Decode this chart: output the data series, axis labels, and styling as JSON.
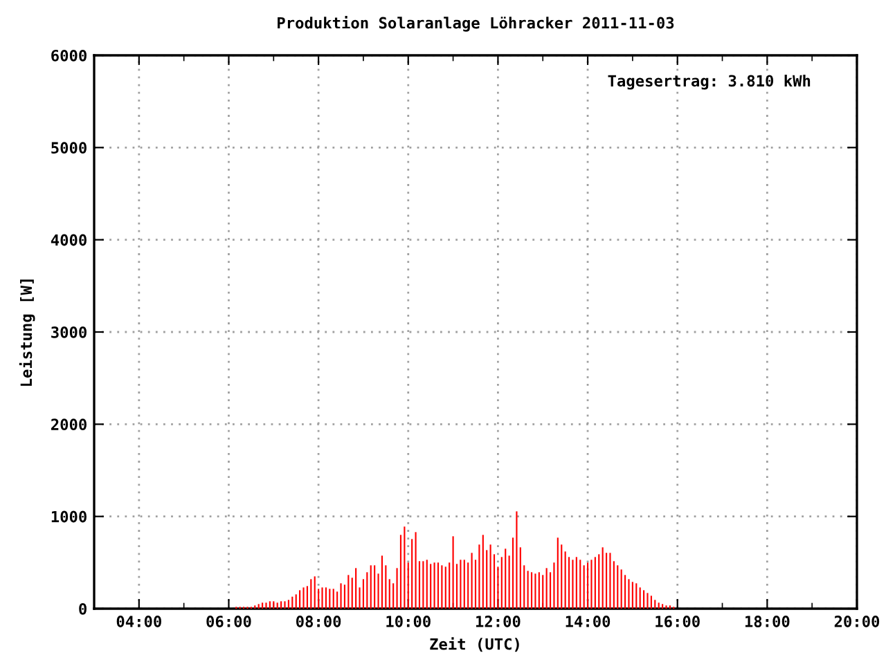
{
  "chart_data": {
    "type": "bar",
    "title": "Produktion Solaranlage Löhracker 2011-11-03",
    "xlabel": "Zeit (UTC)",
    "ylabel": "Leistung [W]",
    "annotations": [
      "Tagesertrag: 3.810 kWh"
    ],
    "x": [
      "2011-11-03T06:10",
      "2011-11-03T06:15",
      "2011-11-03T06:20",
      "2011-11-03T06:25",
      "2011-11-03T06:30",
      "2011-11-03T06:35",
      "2011-11-03T06:40",
      "2011-11-03T06:45",
      "2011-11-03T06:50",
      "2011-11-03T06:55",
      "2011-11-03T07:00",
      "2011-11-03T07:05",
      "2011-11-03T07:10",
      "2011-11-03T07:15",
      "2011-11-03T07:20",
      "2011-11-03T07:25",
      "2011-11-03T07:30",
      "2011-11-03T07:35",
      "2011-11-03T07:40",
      "2011-11-03T07:45",
      "2011-11-03T07:50",
      "2011-11-03T07:55",
      "2011-11-03T08:00",
      "2011-11-03T08:05",
      "2011-11-03T08:10",
      "2011-11-03T08:15",
      "2011-11-03T08:20",
      "2011-11-03T08:25",
      "2011-11-03T08:30",
      "2011-11-03T08:35",
      "2011-11-03T08:40",
      "2011-11-03T08:45",
      "2011-11-03T08:50",
      "2011-11-03T08:55",
      "2011-11-03T09:00",
      "2011-11-03T09:05",
      "2011-11-03T09:10",
      "2011-11-03T09:15",
      "2011-11-03T09:20",
      "2011-11-03T09:25",
      "2011-11-03T09:30",
      "2011-11-03T09:35",
      "2011-11-03T09:40",
      "2011-11-03T09:45",
      "2011-11-03T09:50",
      "2011-11-03T09:55",
      "2011-11-03T10:00",
      "2011-11-03T10:05",
      "2011-11-03T10:10",
      "2011-11-03T10:15",
      "2011-11-03T10:20",
      "2011-11-03T10:25",
      "2011-11-03T10:30",
      "2011-11-03T10:35",
      "2011-11-03T10:40",
      "2011-11-03T10:45",
      "2011-11-03T10:50",
      "2011-11-03T10:55",
      "2011-11-03T11:00",
      "2011-11-03T11:05",
      "2011-11-03T11:10",
      "2011-11-03T11:15",
      "2011-11-03T11:20",
      "2011-11-03T11:25",
      "2011-11-03T11:30",
      "2011-11-03T11:35",
      "2011-11-03T11:40",
      "2011-11-03T11:45",
      "2011-11-03T11:50",
      "2011-11-03T11:55",
      "2011-11-03T12:00",
      "2011-11-03T12:05",
      "2011-11-03T12:10",
      "2011-11-03T12:15",
      "2011-11-03T12:20",
      "2011-11-03T12:25",
      "2011-11-03T12:30",
      "2011-11-03T12:35",
      "2011-11-03T12:40",
      "2011-11-03T12:45",
      "2011-11-03T12:50",
      "2011-11-03T12:55",
      "2011-11-03T13:00",
      "2011-11-03T13:05",
      "2011-11-03T13:10",
      "2011-11-03T13:15",
      "2011-11-03T13:20",
      "2011-11-03T13:25",
      "2011-11-03T13:30",
      "2011-11-03T13:35",
      "2011-11-03T13:40",
      "2011-11-03T13:45",
      "2011-11-03T13:50",
      "2011-11-03T13:55",
      "2011-11-03T14:00",
      "2011-11-03T14:05",
      "2011-11-03T14:10",
      "2011-11-03T14:15",
      "2011-11-03T14:20",
      "2011-11-03T14:25",
      "2011-11-03T14:30",
      "2011-11-03T14:35",
      "2011-11-03T14:40",
      "2011-11-03T14:45",
      "2011-11-03T14:50",
      "2011-11-03T14:55",
      "2011-11-03T15:00",
      "2011-11-03T15:05",
      "2011-11-03T15:10",
      "2011-11-03T15:15",
      "2011-11-03T15:20",
      "2011-11-03T15:25",
      "2011-11-03T15:30",
      "2011-11-03T15:35",
      "2011-11-03T15:40",
      "2011-11-03T15:45",
      "2011-11-03T15:50",
      "2011-11-03T15:55"
    ],
    "series": [
      {
        "color": "#ff0000",
        "values": [
          20,
          20,
          20,
          20,
          20,
          35,
          50,
          65,
          65,
          80,
          80,
          65,
          80,
          80,
          95,
          130,
          155,
          200,
          230,
          245,
          320,
          350,
          215,
          230,
          230,
          215,
          215,
          185,
          275,
          260,
          365,
          335,
          440,
          230,
          320,
          395,
          470,
          470,
          380,
          575,
          470,
          320,
          275,
          440,
          800,
          890,
          500,
          755,
          830,
          515,
          515,
          530,
          485,
          500,
          500,
          470,
          455,
          500,
          785,
          485,
          530,
          530,
          500,
          605,
          530,
          695,
          800,
          635,
          695,
          590,
          455,
          560,
          650,
          575,
          770,
          1055,
          665,
          470,
          410,
          395,
          380,
          395,
          365,
          440,
          395,
          500,
          770,
          695,
          620,
          560,
          530,
          560,
          530,
          470,
          500,
          530,
          560,
          590,
          665,
          605,
          605,
          515,
          470,
          425,
          365,
          320,
          290,
          275,
          230,
          200,
          170,
          140,
          95,
          65,
          50,
          35,
          35,
          20
        ]
      }
    ],
    "xlim": [
      "2011-11-03T03:00",
      "2011-11-03T20:00"
    ],
    "xticks": [
      {
        "value": "2011-11-03T04:00",
        "label": "04:00"
      },
      {
        "value": "2011-11-03T05:00",
        "label": null
      },
      {
        "value": "2011-11-03T06:00",
        "label": "06:00"
      },
      {
        "value": "2011-11-03T07:00",
        "label": null
      },
      {
        "value": "2011-11-03T08:00",
        "label": "08:00"
      },
      {
        "value": "2011-11-03T09:00",
        "label": null
      },
      {
        "value": "2011-11-03T10:00",
        "label": "10:00"
      },
      {
        "value": "2011-11-03T11:00",
        "label": null
      },
      {
        "value": "2011-11-03T12:00",
        "label": "12:00"
      },
      {
        "value": "2011-11-03T13:00",
        "label": null
      },
      {
        "value": "2011-11-03T14:00",
        "label": "14:00"
      },
      {
        "value": "2011-11-03T15:00",
        "label": null
      },
      {
        "value": "2011-11-03T16:00",
        "label": "16:00"
      },
      {
        "value": "2011-11-03T17:00",
        "label": null
      },
      {
        "value": "2011-11-03T18:00",
        "label": "18:00"
      },
      {
        "value": "2011-11-03T19:00",
        "label": null
      },
      {
        "value": "2011-11-03T20:00",
        "label": "20:00"
      }
    ],
    "ylim": [
      0,
      6000
    ],
    "yticks": [
      0,
      1000,
      2000,
      3000,
      4000,
      5000,
      6000
    ],
    "grid": true,
    "legend": false
  }
}
